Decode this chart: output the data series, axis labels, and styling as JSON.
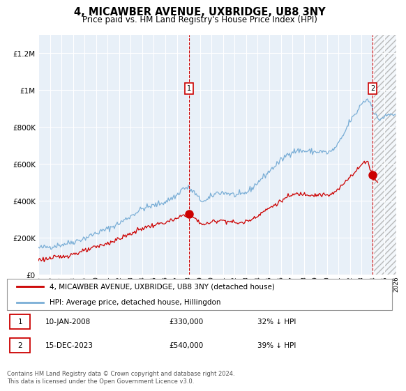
{
  "title": "4, MICAWBER AVENUE, UXBRIDGE, UB8 3NY",
  "subtitle": "Price paid vs. HM Land Registry's House Price Index (HPI)",
  "legend_line1": "4, MICAWBER AVENUE, UXBRIDGE, UB8 3NY (detached house)",
  "legend_line2": "HPI: Average price, detached house, Hillingdon",
  "annotation1_label": "1",
  "annotation1_date": "10-JAN-2008",
  "annotation1_price": "£330,000",
  "annotation1_hpi": "32% ↓ HPI",
  "annotation1_year": 2008.04,
  "annotation1_value": 330000,
  "annotation2_label": "2",
  "annotation2_date": "15-DEC-2023",
  "annotation2_price": "£540,000",
  "annotation2_hpi": "39% ↓ HPI",
  "annotation2_year": 2023.96,
  "annotation2_value": 540000,
  "hpi_color": "#7aaed6",
  "price_color": "#cc0000",
  "background_color": "#e8f0f8",
  "ylim": [
    0,
    1300000
  ],
  "yticks": [
    0,
    200000,
    400000,
    600000,
    800000,
    1000000,
    1200000
  ],
  "footer": "Contains HM Land Registry data © Crown copyright and database right 2024.\nThis data is licensed under the Open Government Licence v3.0.",
  "xmin": 1995,
  "xmax": 2026,
  "xticks": [
    1995,
    1996,
    1997,
    1998,
    1999,
    2000,
    2001,
    2002,
    2003,
    2004,
    2005,
    2006,
    2007,
    2008,
    2009,
    2010,
    2011,
    2012,
    2013,
    2014,
    2015,
    2016,
    2017,
    2018,
    2019,
    2020,
    2021,
    2022,
    2023,
    2024,
    2025,
    2026
  ],
  "hatch_start": 2024.0
}
